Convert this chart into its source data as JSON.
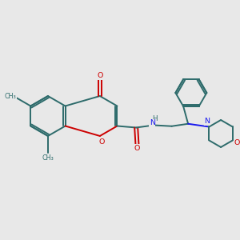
{
  "bg": "#e8e8e8",
  "bc": "#2d6b6b",
  "oc": "#cc0000",
  "nc": "#1a1aee",
  "figsize": [
    3.0,
    3.0
  ],
  "dpi": 100,
  "xlim": [
    0,
    12
  ],
  "ylim": [
    0,
    12
  ],
  "lw": 1.4,
  "fs": 6.8
}
